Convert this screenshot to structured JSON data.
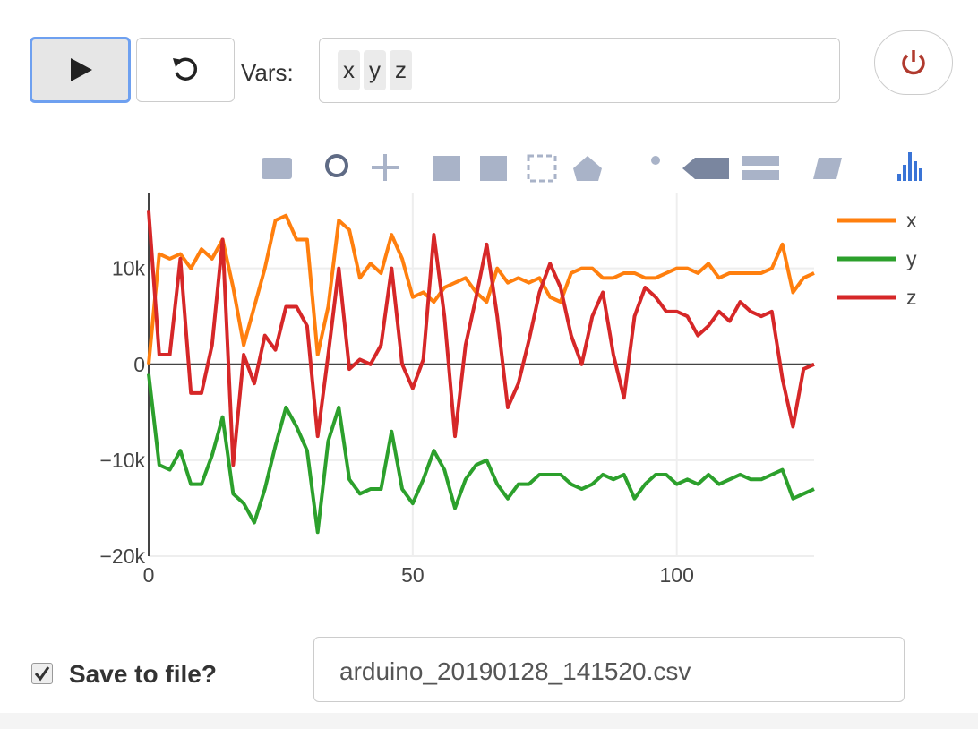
{
  "ui": {
    "vars_label": "Vars:",
    "vars": [
      "x",
      "y",
      "z"
    ],
    "save_label": "Save to file?",
    "filename": "arduino_20190128_141520.csv"
  },
  "chart_data": {
    "type": "line",
    "x": [
      0,
      2,
      4,
      6,
      8,
      10,
      12,
      14,
      16,
      18,
      20,
      22,
      24,
      26,
      28,
      30,
      32,
      34,
      36,
      38,
      40,
      42,
      44,
      46,
      48,
      50,
      52,
      54,
      56,
      58,
      60,
      62,
      64,
      66,
      68,
      70,
      72,
      74,
      76,
      78,
      80,
      82,
      84,
      86,
      88,
      90,
      92,
      94,
      96,
      98,
      100,
      102,
      104,
      106,
      108,
      110,
      112,
      114,
      116,
      118,
      120,
      122,
      124,
      126
    ],
    "series": [
      {
        "name": "x",
        "color": "#ff7f0e",
        "values": [
          0,
          11500,
          11000,
          11500,
          10000,
          12000,
          11000,
          13000,
          8000,
          2000,
          6000,
          10000,
          15000,
          15500,
          13000,
          13000,
          1000,
          6000,
          15000,
          14000,
          9000,
          10500,
          9500,
          13500,
          11000,
          7000,
          7500,
          6500,
          8000,
          8500,
          9000,
          7500,
          6500,
          10000,
          8500,
          9000,
          8500,
          9000,
          7000,
          6500,
          9500,
          10000,
          10000,
          9000,
          9000,
          9500,
          9500,
          9000,
          9000,
          9500,
          10000,
          10000,
          9500,
          10500,
          9000,
          9500,
          9500,
          9500,
          9500,
          10000,
          12500,
          7500,
          9000,
          9500
        ]
      },
      {
        "name": "y",
        "color": "#2ca02c",
        "values": [
          -1000,
          -10500,
          -11000,
          -9000,
          -12500,
          -12500,
          -9500,
          -5500,
          -13500,
          -14500,
          -16500,
          -13000,
          -8500,
          -4500,
          -6500,
          -9000,
          -17500,
          -8000,
          -4500,
          -12000,
          -13500,
          -13000,
          -13000,
          -7000,
          -13000,
          -14500,
          -12000,
          -9000,
          -11000,
          -15000,
          -12000,
          -10500,
          -10000,
          -12500,
          -14000,
          -12500,
          -12500,
          -11500,
          -11500,
          -11500,
          -12500,
          -13000,
          -12500,
          -11500,
          -12000,
          -11500,
          -14000,
          -12500,
          -11500,
          -11500,
          -12500,
          -12000,
          -12500,
          -11500,
          -12500,
          -12000,
          -11500,
          -12000,
          -12000,
          -11500,
          -11000,
          -14000,
          -13500,
          -13000
        ]
      },
      {
        "name": "z",
        "color": "#d62728",
        "values": [
          16000,
          1000,
          1000,
          11000,
          -3000,
          -3000,
          2000,
          13000,
          -10500,
          1000,
          -2000,
          3000,
          1500,
          6000,
          6000,
          4000,
          -7500,
          1000,
          10000,
          -500,
          500,
          0,
          2000,
          10000,
          0,
          -2500,
          500,
          13500,
          5000,
          -7500,
          2000,
          7000,
          12500,
          5000,
          -4500,
          -2000,
          2500,
          7500,
          10500,
          8000,
          3000,
          0,
          5000,
          7500,
          1000,
          -3500,
          5000,
          8000,
          7000,
          5500,
          5500,
          5000,
          3000,
          4000,
          5500,
          4500,
          6500,
          5500,
          5000,
          5500,
          -1500,
          -6500,
          -500,
          0
        ]
      }
    ],
    "xlim": [
      0,
      126
    ],
    "xticks": [
      0,
      50,
      100
    ],
    "ylim": [
      -20000,
      17900
    ],
    "yticks": [
      {
        "value": -20000,
        "label": "−20k"
      },
      {
        "value": -10000,
        "label": "−10k"
      },
      {
        "value": 0,
        "label": "0"
      },
      {
        "value": 10000,
        "label": "10k"
      }
    ],
    "grid": true,
    "legend": "right"
  }
}
